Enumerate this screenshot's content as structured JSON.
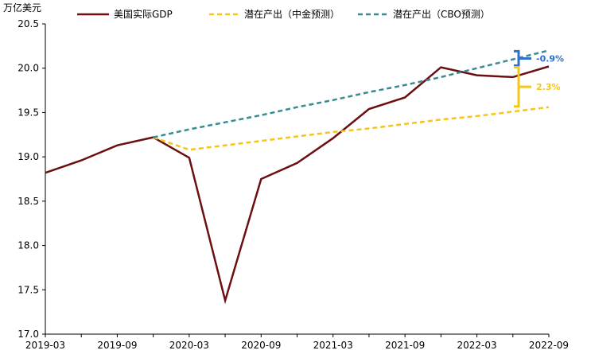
{
  "chart_data": {
    "type": "line",
    "unit_label": "万亿美元",
    "ylim": [
      17.0,
      20.5
    ],
    "y_ticks": [
      "17.0",
      "17.5",
      "18.0",
      "18.5",
      "19.0",
      "19.5",
      "20.0",
      "20.5"
    ],
    "x_ticks": [
      "2019-03",
      "2019-09",
      "2020-03",
      "2020-09",
      "2021-03",
      "2021-09",
      "2022-03",
      "2022-09"
    ],
    "x_periods": [
      "2019-03",
      "2019-06",
      "2019-09",
      "2019-12",
      "2020-03",
      "2020-06",
      "2020-09",
      "2020-12",
      "2021-03",
      "2021-06",
      "2021-09",
      "2021-12",
      "2022-03",
      "2022-06",
      "2022-09"
    ],
    "series": [
      {
        "name": "美国实际GDP",
        "color": "#6b0f12",
        "style": "solid",
        "values": [
          18.82,
          18.96,
          19.13,
          19.22,
          18.99,
          17.38,
          18.75,
          18.93,
          19.21,
          19.54,
          19.67,
          20.01,
          19.92,
          19.9,
          20.02
        ]
      },
      {
        "name": "潜在产出（中金预测）",
        "color": "#f5c518",
        "style": "dashed",
        "values": [
          null,
          null,
          null,
          19.22,
          19.08,
          19.13,
          19.18,
          19.23,
          19.28,
          19.32,
          19.37,
          19.42,
          19.46,
          19.51,
          19.56
        ]
      },
      {
        "name": "潜在产出（CBO预测）",
        "color": "#3a8a93",
        "style": "dashed",
        "values": [
          null,
          null,
          null,
          19.22,
          19.31,
          19.39,
          19.47,
          19.56,
          19.64,
          19.73,
          19.81,
          19.9,
          20.0,
          20.1,
          20.2
        ]
      }
    ],
    "annotations": [
      {
        "text": "-0.9%",
        "color": "#2f6fd1",
        "from": 20.02,
        "to": 20.2
      },
      {
        "text": "2.3%",
        "color": "#f5c518",
        "from": 19.56,
        "to": 20.02
      }
    ],
    "grid": false,
    "legend_position": "top"
  }
}
